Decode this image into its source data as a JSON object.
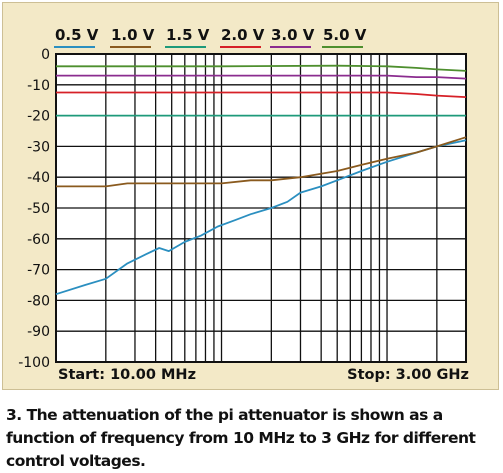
{
  "chart_data": {
    "type": "line",
    "xscale": "log",
    "xlim_mhz": [
      10,
      3000
    ],
    "ylim": [
      -100,
      0
    ],
    "yticks": [
      0,
      -10,
      -20,
      -30,
      -40,
      -50,
      -60,
      -70,
      -80,
      -90,
      -100
    ],
    "ytick_labels": [
      "0",
      "-10",
      "-20",
      "-30",
      "-40",
      "-50",
      "-60",
      "-70",
      "-80",
      "-90",
      "-100"
    ],
    "grid": true,
    "legend_position": "top",
    "start_label": "Start: 10.00 MHz",
    "stop_label": "Stop: 3.00 GHz",
    "series": [
      {
        "name": "0.5 V",
        "color": "#2b8fc0",
        "x": [
          10,
          15,
          20,
          27,
          35,
          42,
          48,
          60,
          75,
          95,
          120,
          150,
          200,
          250,
          300,
          400,
          500,
          700,
          1000,
          1500,
          2000,
          3000
        ],
        "y": [
          -78,
          -75,
          -73,
          -68,
          -65,
          -63,
          -64,
          -61,
          -59,
          -56,
          -54,
          -52,
          -50,
          -48,
          -45,
          -43,
          -41,
          -38,
          -35,
          -32,
          -30,
          -28
        ]
      },
      {
        "name": "1.0 V",
        "color": "#8a5a1e",
        "x": [
          10,
          20,
          27,
          40,
          60,
          100,
          150,
          200,
          300,
          500,
          700,
          1000,
          1500,
          2000,
          3000
        ],
        "y": [
          -43,
          -43,
          -42,
          -42,
          -42,
          -42,
          -41,
          -41,
          -40,
          -38,
          -36,
          -34,
          -32,
          -30,
          -27
        ]
      },
      {
        "name": "1.5 V",
        "color": "#1e9a7a",
        "x": [
          10,
          100,
          1000,
          3000
        ],
        "y": [
          -20,
          -20,
          -20,
          -20
        ]
      },
      {
        "name": "2.0 V",
        "color": "#d62027",
        "x": [
          10,
          100,
          500,
          1000,
          1500,
          2000,
          3000
        ],
        "y": [
          -12.5,
          -12.5,
          -12.5,
          -12.5,
          -13,
          -13.5,
          -14
        ]
      },
      {
        "name": "3.0 V",
        "color": "#8b2c8f",
        "x": [
          10,
          100,
          500,
          1000,
          1500,
          2000,
          3000
        ],
        "y": [
          -7,
          -7,
          -7,
          -7,
          -7.5,
          -7.5,
          -8
        ]
      },
      {
        "name": "5.0 V",
        "color": "#4e8f2e",
        "x": [
          10,
          100,
          500,
          1000,
          1500,
          2000,
          3000
        ],
        "y": [
          -4,
          -4,
          -3.8,
          -4,
          -4.5,
          -5,
          -5.5
        ]
      }
    ]
  },
  "caption": "3. The attenuation of the pi attenuator is shown as a function of frequency from 10 MHz to 3 GHz for different control voltages."
}
